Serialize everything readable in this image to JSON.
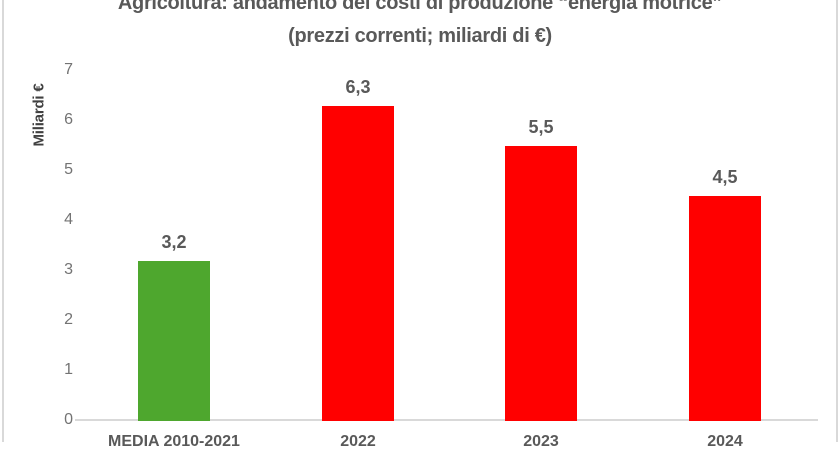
{
  "title": {
    "line1": "Agricoltura: andamento dei costi di produzione “energia motrice”",
    "line2": "(prezzi correnti; miliardi di €)"
  },
  "y_axis": {
    "label": "Miliardi €",
    "ticks": [
      0,
      1,
      2,
      3,
      4,
      5,
      6,
      7
    ]
  },
  "chart_data": {
    "type": "bar",
    "title": "Agricoltura: andamento dei costi di produzione “energia motrice” (prezzi correnti; miliardi di €)",
    "categories": [
      "MEDIA 2010-2021",
      "2022",
      "2023",
      "2024"
    ],
    "values": [
      3.2,
      6.3,
      5.5,
      4.5
    ],
    "data_labels": [
      "3,2",
      "6,3",
      "5,5",
      "4,5"
    ],
    "bar_colors": [
      "#4EA72E",
      "#FF0000",
      "#FF0000",
      "#FF0000"
    ],
    "xlabel": "",
    "ylabel": "Miliardi €",
    "ylim": [
      0,
      7
    ],
    "grid": false,
    "legend": false,
    "axis_line_color": "#D9D9D9",
    "label_color": "#595959",
    "tick_color": "#737373",
    "background": "#FFFFFF"
  }
}
